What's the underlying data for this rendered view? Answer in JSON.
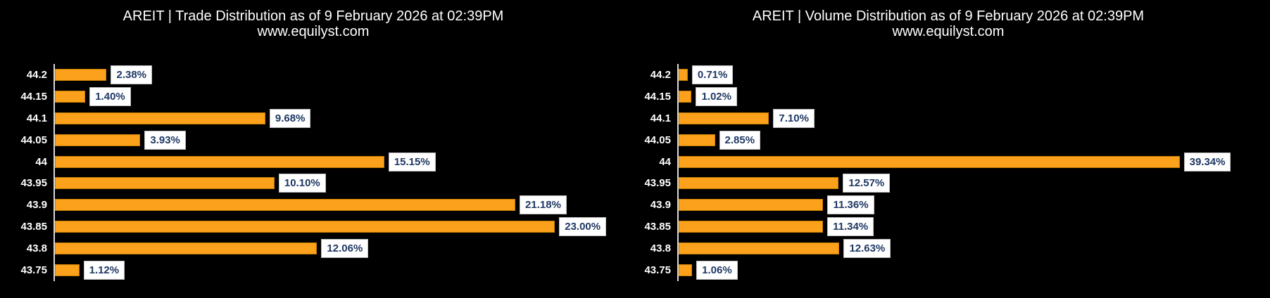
{
  "colors": {
    "background": "#000000",
    "bar_fill": "#FBA11B",
    "bar_border": "#C87E00",
    "axis_line": "#D9D9D9",
    "tick_text": "#FFFFFF",
    "title_text": "#FFFFFF",
    "label_text": "#1F3864",
    "label_box_bg": "#FFFFFF",
    "label_box_border": "#BFBFBF"
  },
  "chart_data": [
    {
      "type": "bar",
      "orientation": "horizontal",
      "title": "AREIT | Trade Distribution as of 9 February 2026 at 02:39PM",
      "subtitle": "www.equilyst.com",
      "categories": [
        "44.2",
        "44.15",
        "44.1",
        "44.05",
        "44",
        "43.95",
        "43.9",
        "43.85",
        "43.8",
        "43.75"
      ],
      "values": [
        2.38,
        1.4,
        9.68,
        3.93,
        15.15,
        10.1,
        21.18,
        23.0,
        12.06,
        1.12
      ],
      "labels": [
        "2.38%",
        "1.40%",
        "9.68%",
        "3.93%",
        "15.15%",
        "10.10%",
        "21.18%",
        "23.00%",
        "12.06%",
        "1.12%"
      ],
      "xlim": [
        0,
        25
      ],
      "grid": false,
      "legend": false
    },
    {
      "type": "bar",
      "orientation": "horizontal",
      "title": "AREIT | Volume Distribution as of 9 February 2026 at 02:39PM",
      "subtitle": "www.equilyst.com",
      "categories": [
        "44.2",
        "44.15",
        "44.1",
        "44.05",
        "44",
        "43.95",
        "43.9",
        "43.85",
        "43.8",
        "43.75"
      ],
      "values": [
        0.71,
        1.02,
        7.1,
        2.85,
        39.34,
        12.57,
        11.36,
        11.34,
        12.63,
        1.06
      ],
      "labels": [
        "0.71%",
        "1.02%",
        "7.10%",
        "2.85%",
        "39.34%",
        "12.57%",
        "11.36%",
        "11.34%",
        "12.63%",
        "1.06%"
      ],
      "xlim": [
        0,
        45
      ],
      "grid": false,
      "legend": false
    }
  ]
}
